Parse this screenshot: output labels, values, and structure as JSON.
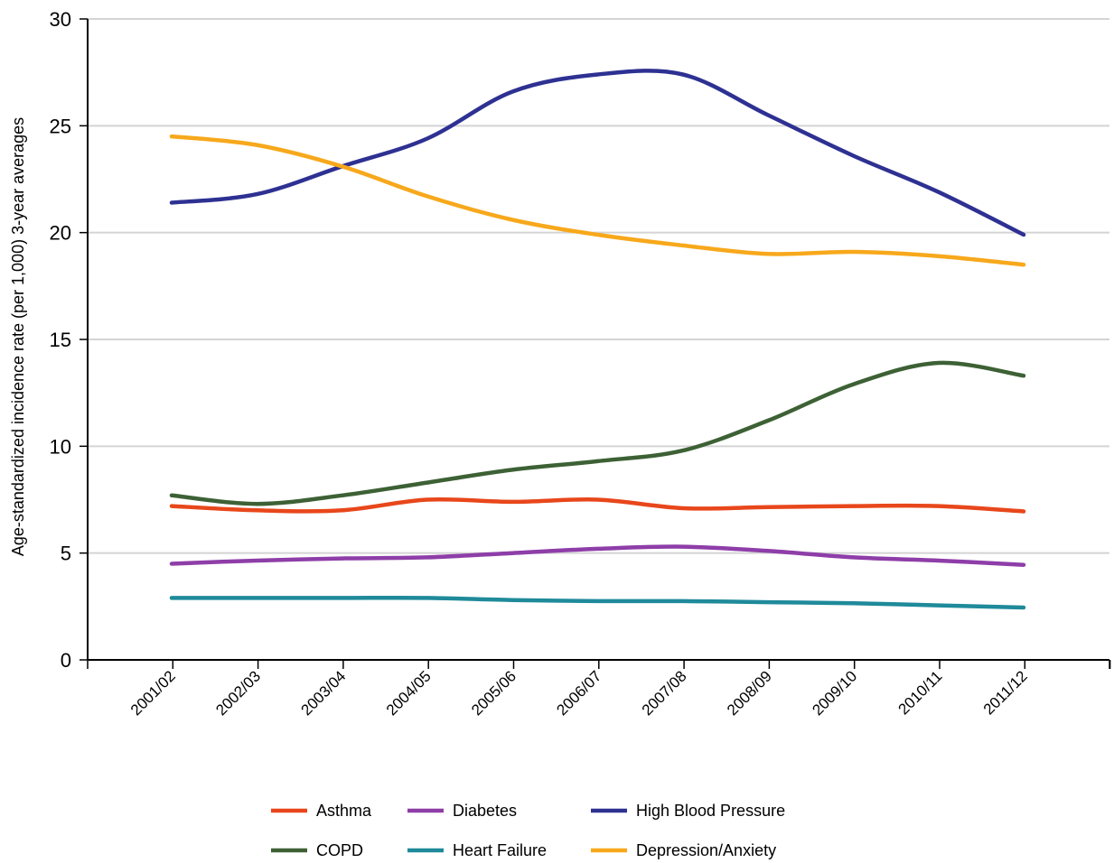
{
  "chart_data": {
    "type": "line",
    "title": "",
    "xlabel": "",
    "ylabel": "Age-standardized incidence rate  (per 1,000)  3-year averages",
    "ylim": [
      0,
      30
    ],
    "yticks": [
      0,
      5,
      10,
      15,
      20,
      25,
      30
    ],
    "grid": "horizontal",
    "legend_position": "bottom",
    "categories": [
      "2001/02",
      "2002/03",
      "2003/04",
      "2004/05",
      "2005/06",
      "2006/07",
      "2007/08",
      "2008/09",
      "2009/10",
      "2010/11",
      "2011/12"
    ],
    "series": [
      {
        "name": "Asthma",
        "color": "#e8471b",
        "values": [
          7.2,
          7.0,
          7.0,
          7.5,
          7.4,
          7.5,
          7.1,
          7.15,
          7.2,
          7.2,
          6.95
        ]
      },
      {
        "name": "Diabetes",
        "color": "#8e3ea8",
        "values": [
          4.5,
          4.65,
          4.75,
          4.8,
          5.0,
          5.2,
          5.3,
          5.1,
          4.8,
          4.65,
          4.45
        ]
      },
      {
        "name": "High Blood Pressure",
        "color": "#2e3192",
        "values": [
          21.4,
          21.8,
          23.1,
          24.4,
          26.6,
          27.4,
          27.4,
          25.5,
          23.6,
          21.9,
          19.9
        ]
      },
      {
        "name": "COPD",
        "color": "#3d6135",
        "values": [
          7.7,
          7.3,
          7.7,
          8.3,
          8.9,
          9.3,
          9.8,
          11.2,
          12.9,
          13.9,
          13.3
        ]
      },
      {
        "name": "Heart Failure",
        "color": "#1f8a9a",
        "values": [
          2.9,
          2.9,
          2.9,
          2.9,
          2.8,
          2.75,
          2.75,
          2.7,
          2.65,
          2.55,
          2.45
        ]
      },
      {
        "name": "Depression/Anxiety",
        "color": "#f7a81b",
        "values": [
          24.5,
          24.1,
          23.1,
          21.7,
          20.6,
          19.9,
          19.4,
          19.0,
          19.1,
          18.9,
          18.5
        ]
      }
    ]
  }
}
